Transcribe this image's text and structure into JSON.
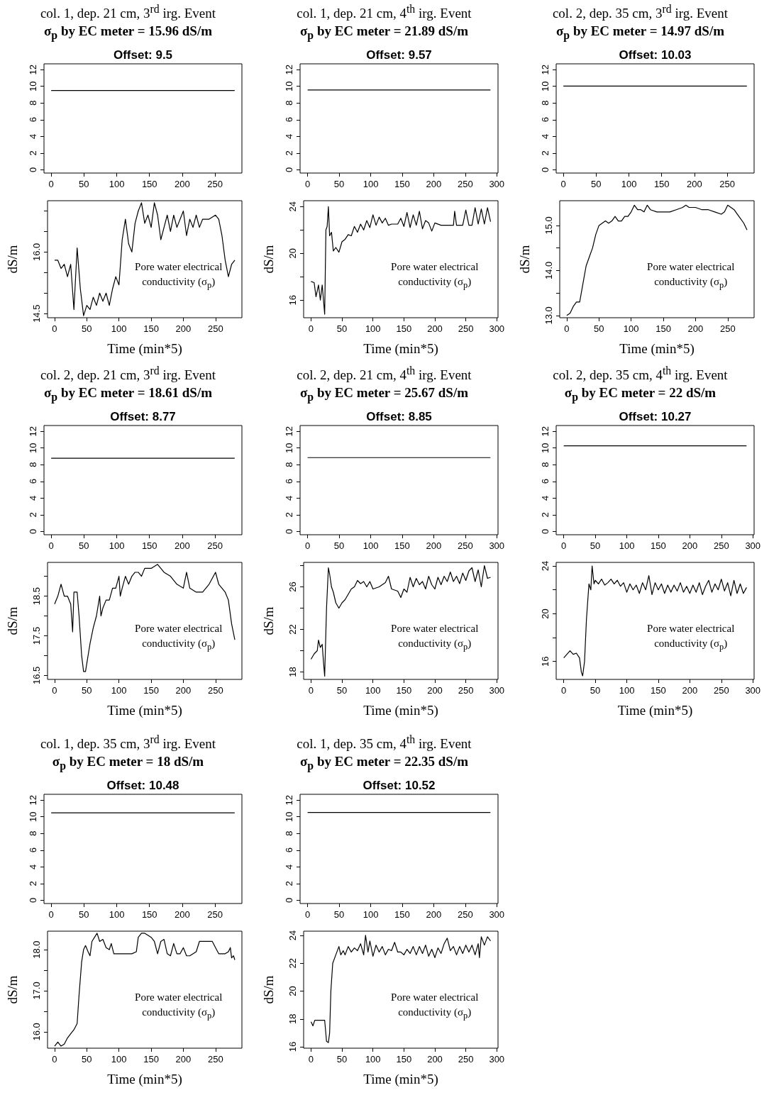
{
  "chart_data": [
    {
      "type": "line",
      "title": "col. 1, dep. 21 cm, 3$^{rd}$ irg. Event",
      "subtitle": "σ$_{p}$ by EC meter = 15.96 dS/m",
      "annotations": [
        "Offset: 9.5"
      ],
      "marker": "none",
      "line_style": "solid",
      "xlim": [
        -11,
        291
      ],
      "xticks": [
        0,
        50,
        100,
        150,
        200,
        250
      ],
      "ylim": [
        -0.4,
        12.7
      ],
      "yticks": [
        0,
        2,
        4,
        6,
        8,
        10,
        12
      ],
      "series": [
        {
          "color": "#000000",
          "x": [
            0,
            280
          ],
          "values": [
            9.5,
            9.5
          ]
        }
      ]
    },
    {
      "type": "line",
      "xlabel": "Time (min*5)",
      "ylabel": "dS/m",
      "annotations": [
        "Pore water electrical conductivity (σ$_{p}$)"
      ],
      "marker": "none",
      "line_style": "solid",
      "xlim": [
        -11,
        291
      ],
      "xticks": [
        0,
        50,
        100,
        150,
        200,
        250
      ],
      "ylim": [
        14.4,
        17.25
      ],
      "yticks": [
        14.5,
        {
          "value": 15,
          "label": null
        },
        {
          "value": 15.5,
          "label": null
        },
        {
          "value": 16,
          "label": "16.0"
        },
        {
          "value": 16.5,
          "label": null
        },
        {
          "value": 17,
          "label": null
        }
      ],
      "series": [
        {
          "color": "#000000",
          "x": [
            0,
            5,
            10,
            15,
            20,
            25,
            30,
            35,
            40,
            45,
            50,
            55,
            60,
            65,
            70,
            75,
            80,
            85,
            90,
            95,
            100,
            105,
            110,
            115,
            120,
            125,
            130,
            135,
            140,
            145,
            150,
            155,
            160,
            165,
            170,
            175,
            180,
            185,
            190,
            195,
            200,
            205,
            210,
            215,
            220,
            225,
            230,
            240,
            250,
            255,
            260,
            265,
            270,
            275,
            280
          ],
          "values": [
            15.8,
            15.8,
            15.6,
            15.7,
            15.4,
            15.7,
            14.6,
            16.1,
            15.1,
            14.45,
            14.7,
            14.6,
            14.9,
            14.7,
            15.0,
            14.8,
            15.0,
            14.7,
            15.1,
            15.4,
            15.2,
            16.3,
            16.8,
            16.2,
            16.0,
            16.7,
            17.0,
            17.2,
            16.7,
            16.9,
            16.6,
            17.2,
            16.9,
            16.3,
            16.6,
            16.9,
            16.5,
            16.9,
            16.6,
            16.8,
            17.0,
            16.4,
            16.8,
            16.6,
            16.9,
            16.6,
            16.8,
            16.8,
            16.9,
            16.8,
            16.4,
            15.8,
            15.4,
            15.7,
            15.8
          ]
        }
      ]
    },
    {
      "type": "line",
      "title": "col. 1, dep. 21 cm, 4$^{th}$ irg. Event",
      "subtitle": "σ$_{p}$ by EC meter = 21.89 dS/m",
      "annotations": [
        "Offset: 9.57"
      ],
      "marker": "none",
      "line_style": "solid",
      "xlim": [
        -12,
        302
      ],
      "xticks": [
        0,
        50,
        100,
        150,
        200,
        250,
        300
      ],
      "ylim": [
        -0.4,
        12.7
      ],
      "yticks": [
        0,
        2,
        4,
        6,
        8,
        10,
        12
      ],
      "series": [
        {
          "color": "#000000",
          "x": [
            0,
            290
          ],
          "values": [
            9.57,
            9.57
          ]
        }
      ]
    },
    {
      "type": "line",
      "xlabel": "Time (min*5)",
      "ylabel": "dS/m",
      "annotations": [
        "Pore water electrical conductivity (σ$_{p}$)"
      ],
      "marker": "none",
      "line_style": "solid",
      "xlim": [
        -12,
        302
      ],
      "xticks": [
        0,
        50,
        100,
        150,
        200,
        250,
        300
      ],
      "ylim": [
        14.5,
        24.5
      ],
      "yticks": [
        16,
        {
          "value": 18,
          "label": null
        },
        20,
        {
          "value": 22,
          "label": null
        },
        24
      ],
      "series": [
        {
          "color": "#000000",
          "x": [
            0,
            5,
            8,
            12,
            15,
            18,
            22,
            24,
            26,
            28,
            30,
            33,
            36,
            40,
            45,
            50,
            55,
            60,
            65,
            70,
            75,
            80,
            85,
            90,
            95,
            100,
            105,
            110,
            115,
            120,
            125,
            130,
            140,
            145,
            150,
            155,
            160,
            165,
            170,
            175,
            180,
            185,
            190,
            195,
            200,
            210,
            230,
            232,
            235,
            245,
            250,
            255,
            260,
            265,
            270,
            275,
            280,
            285,
            290
          ],
          "values": [
            17.6,
            17.5,
            16.3,
            17.3,
            16.0,
            17.3,
            14.8,
            22.0,
            22.3,
            24.0,
            21.5,
            21.8,
            20.2,
            20.5,
            20.1,
            21.0,
            21.2,
            21.6,
            21.5,
            22.3,
            21.8,
            22.5,
            22.0,
            22.8,
            22.2,
            23.3,
            22.4,
            23.1,
            22.6,
            23.0,
            22.4,
            22.5,
            22.5,
            23.0,
            22.3,
            23.5,
            22.2,
            23.3,
            22.4,
            23.6,
            22.1,
            22.8,
            22.6,
            21.9,
            22.6,
            22.4,
            22.4,
            23.6,
            22.4,
            22.4,
            23.7,
            22.4,
            22.4,
            23.9,
            22.5,
            23.8,
            22.5,
            23.9,
            22.7
          ]
        }
      ]
    },
    {
      "type": "line",
      "title": "col. 2, dep. 35 cm, 3$^{rd}$ irg. Event",
      "subtitle": "σ$_{p}$ by EC meter = 14.97 dS/m",
      "annotations": [
        "Offset: 10.03"
      ],
      "marker": "none",
      "line_style": "solid",
      "xlim": [
        -11,
        291
      ],
      "xticks": [
        0,
        50,
        100,
        150,
        200,
        250
      ],
      "ylim": [
        -0.4,
        12.7
      ],
      "yticks": [
        0,
        2,
        4,
        6,
        8,
        10,
        12
      ],
      "series": [
        {
          "color": "#000000",
          "x": [
            0,
            280
          ],
          "values": [
            10.03,
            10.03
          ]
        }
      ]
    },
    {
      "type": "line",
      "xlabel": "Time (min*5)",
      "ylabel": "dS/m",
      "annotations": [
        "Pore water electrical conductivity (σ$_{p}$)"
      ],
      "marker": "none",
      "line_style": "solid",
      "xlim": [
        -11,
        291
      ],
      "xticks": [
        0,
        50,
        100,
        150,
        200,
        250
      ],
      "ylim": [
        12.95,
        15.55
      ],
      "yticks": [
        {
          "value": 13,
          "label": "13.0"
        },
        {
          "value": 13.5,
          "label": null
        },
        {
          "value": 14,
          "label": "14.0"
        },
        {
          "value": 14.5,
          "label": null
        },
        {
          "value": 15,
          "label": "15.0"
        }
      ],
      "series": [
        {
          "color": "#000000",
          "x": [
            0,
            5,
            10,
            15,
            20,
            25,
            30,
            35,
            40,
            45,
            50,
            55,
            60,
            65,
            70,
            75,
            80,
            85,
            90,
            95,
            100,
            105,
            110,
            115,
            120,
            125,
            130,
            140,
            150,
            160,
            170,
            180,
            185,
            190,
            200,
            210,
            220,
            230,
            240,
            245,
            250,
            255,
            260,
            265,
            270,
            275,
            280
          ],
          "values": [
            13.0,
            13.05,
            13.2,
            13.3,
            13.3,
            13.7,
            14.1,
            14.3,
            14.5,
            14.8,
            15.0,
            15.05,
            15.1,
            15.05,
            15.1,
            15.2,
            15.1,
            15.1,
            15.2,
            15.2,
            15.3,
            15.45,
            15.35,
            15.35,
            15.3,
            15.45,
            15.35,
            15.3,
            15.3,
            15.3,
            15.35,
            15.4,
            15.45,
            15.4,
            15.4,
            15.35,
            15.35,
            15.3,
            15.25,
            15.3,
            15.45,
            15.4,
            15.35,
            15.25,
            15.15,
            15.05,
            14.9
          ]
        }
      ]
    },
    {
      "type": "line",
      "title": "col. 2, dep. 21 cm, 3$^{rd}$ irg. Event",
      "subtitle": "σ$_{p}$ by EC meter = 18.61 dS/m",
      "annotations": [
        "Offset: 8.77"
      ],
      "marker": "none",
      "line_style": "solid",
      "xlim": [
        -11,
        291
      ],
      "xticks": [
        0,
        50,
        100,
        150,
        200,
        250
      ],
      "ylim": [
        -0.4,
        12.7
      ],
      "yticks": [
        0,
        2,
        4,
        6,
        8,
        10,
        12
      ],
      "series": [
        {
          "color": "#000000",
          "x": [
            0,
            280
          ],
          "values": [
            8.77,
            8.77
          ]
        }
      ]
    },
    {
      "type": "line",
      "xlabel": "Time (min*5)",
      "ylabel": "dS/m",
      "annotations": [
        "Pore water electrical conductivity (σ$_{p}$)"
      ],
      "marker": "none",
      "line_style": "solid",
      "xlim": [
        -11,
        291
      ],
      "xticks": [
        0,
        50,
        100,
        150,
        200,
        250
      ],
      "ylim": [
        16.4,
        19.35
      ],
      "yticks": [
        16.5,
        {
          "value": 17,
          "label": null
        },
        17.5,
        {
          "value": 18,
          "label": null
        },
        18.5,
        {
          "value": 19,
          "label": null
        }
      ],
      "series": [
        {
          "color": "#000000",
          "x": [
            0,
            5,
            10,
            15,
            20,
            25,
            28,
            30,
            35,
            38,
            42,
            45,
            48,
            52,
            55,
            60,
            65,
            70,
            72,
            75,
            80,
            85,
            90,
            95,
            100,
            102,
            105,
            110,
            115,
            120,
            125,
            130,
            135,
            140,
            150,
            160,
            165,
            170,
            180,
            190,
            200,
            205,
            210,
            220,
            230,
            240,
            250,
            255,
            260,
            265,
            270,
            275,
            280
          ],
          "values": [
            18.3,
            18.5,
            18.8,
            18.5,
            18.5,
            18.3,
            17.6,
            18.6,
            18.6,
            18.0,
            17.0,
            16.6,
            16.6,
            17.0,
            17.3,
            17.7,
            18.0,
            18.5,
            18.0,
            18.2,
            18.4,
            18.4,
            18.7,
            18.7,
            19.0,
            18.5,
            18.7,
            19.0,
            18.8,
            19.0,
            19.1,
            19.1,
            19.0,
            19.2,
            19.2,
            19.3,
            19.2,
            19.1,
            19.0,
            18.8,
            18.7,
            19.1,
            18.7,
            18.6,
            18.6,
            18.8,
            19.1,
            18.8,
            18.7,
            18.6,
            18.4,
            17.8,
            17.4
          ]
        }
      ]
    },
    {
      "type": "line",
      "title": "col. 2, dep. 21 cm, 4$^{th}$ irg. Event",
      "subtitle": "σ$_{p}$ by EC meter = 25.67 dS/m",
      "annotations": [
        "Offset: 8.85"
      ],
      "marker": "none",
      "line_style": "solid",
      "xlim": [
        -12,
        302
      ],
      "xticks": [
        0,
        50,
        100,
        150,
        200,
        250,
        300
      ],
      "ylim": [
        -0.4,
        12.7
      ],
      "yticks": [
        0,
        2,
        4,
        6,
        8,
        10,
        12
      ],
      "series": [
        {
          "color": "#000000",
          "x": [
            0,
            290
          ],
          "values": [
            8.85,
            8.85
          ]
        }
      ]
    },
    {
      "type": "line",
      "xlabel": "Time (min*5)",
      "ylabel": "dS/m",
      "annotations": [
        "Pore water electrical conductivity (σ$_{p}$)"
      ],
      "marker": "none",
      "line_style": "solid",
      "xlim": [
        -12,
        302
      ],
      "xticks": [
        0,
        50,
        100,
        150,
        200,
        250,
        300
      ],
      "ylim": [
        17.3,
        28.3
      ],
      "yticks": [
        18,
        {
          "value": 20,
          "label": null
        },
        22,
        {
          "value": 24,
          "label": null
        },
        26,
        {
          "value": 28,
          "label": null
        }
      ],
      "series": [
        {
          "color": "#000000",
          "x": [
            0,
            5,
            10,
            12,
            15,
            18,
            20,
            22,
            25,
            28,
            30,
            33,
            36,
            40,
            45,
            50,
            55,
            60,
            65,
            70,
            75,
            80,
            85,
            90,
            95,
            100,
            110,
            120,
            125,
            130,
            140,
            145,
            150,
            155,
            160,
            165,
            170,
            175,
            180,
            185,
            190,
            195,
            200,
            205,
            210,
            215,
            220,
            225,
            230,
            235,
            240,
            245,
            250,
            255,
            260,
            265,
            270,
            275,
            280,
            285,
            290
          ],
          "values": [
            19.2,
            19.7,
            20.0,
            21.0,
            20.3,
            20.6,
            19.0,
            17.6,
            24.0,
            27.8,
            27.2,
            26.0,
            25.5,
            24.5,
            24.0,
            24.5,
            24.8,
            25.3,
            25.8,
            26.0,
            26.6,
            26.3,
            26.5,
            26.0,
            26.5,
            25.8,
            26.0,
            26.4,
            27.0,
            25.8,
            25.6,
            25.0,
            25.8,
            25.5,
            26.9,
            26.0,
            26.8,
            26.2,
            26.5,
            25.8,
            27.0,
            26.2,
            25.8,
            26.9,
            26.2,
            27.0,
            26.5,
            27.4,
            26.5,
            27.0,
            26.3,
            27.3,
            26.6,
            27.5,
            27.8,
            26.5,
            27.6,
            26.0,
            28.0,
            26.8,
            26.9
          ]
        }
      ]
    },
    {
      "type": "line",
      "title": "col. 2, dep. 35 cm, 4$^{th}$ irg. Event",
      "subtitle": "σ$_{p}$ by EC meter = 22 dS/m",
      "annotations": [
        "Offset: 10.27"
      ],
      "marker": "none",
      "line_style": "solid",
      "xlim": [
        -12,
        302
      ],
      "xticks": [
        0,
        50,
        100,
        150,
        200,
        250,
        300
      ],
      "ylim": [
        -0.4,
        12.7
      ],
      "yticks": [
        0,
        2,
        4,
        6,
        8,
        10,
        12
      ],
      "series": [
        {
          "color": "#000000",
          "x": [
            0,
            290
          ],
          "values": [
            10.27,
            10.27
          ]
        }
      ]
    },
    {
      "type": "line",
      "xlabel": "Time (min*5)",
      "annotations": [
        "Pore water electrical conductivity (σ$_{p}$)"
      ],
      "marker": "none",
      "line_style": "solid",
      "xlim": [
        -12,
        302
      ],
      "xticks": [
        0,
        50,
        100,
        150,
        200,
        250,
        300
      ],
      "ylim": [
        14.5,
        24.3
      ],
      "yticks": [
        16,
        {
          "value": 18,
          "label": null
        },
        20,
        {
          "value": 22,
          "label": null
        },
        24
      ],
      "series": [
        {
          "color": "#000000",
          "x": [
            0,
            5,
            10,
            15,
            20,
            25,
            28,
            30,
            33,
            36,
            40,
            43,
            45,
            48,
            50,
            55,
            60,
            65,
            70,
            75,
            80,
            85,
            90,
            95,
            100,
            105,
            110,
            115,
            120,
            125,
            130,
            135,
            140,
            145,
            150,
            155,
            160,
            165,
            170,
            175,
            180,
            185,
            190,
            195,
            200,
            205,
            210,
            215,
            220,
            225,
            230,
            235,
            240,
            245,
            250,
            255,
            260,
            265,
            270,
            275,
            280,
            285,
            290
          ],
          "values": [
            16.3,
            16.6,
            16.9,
            16.6,
            16.7,
            16.3,
            15.1,
            14.8,
            16.0,
            19.5,
            22.5,
            22.0,
            24.0,
            22.5,
            22.8,
            22.5,
            22.9,
            22.4,
            22.6,
            22.9,
            22.5,
            22.8,
            22.3,
            22.6,
            21.8,
            22.5,
            22.0,
            22.4,
            21.7,
            22.6,
            22.0,
            23.2,
            21.6,
            22.6,
            22.0,
            22.5,
            21.7,
            22.4,
            21.8,
            22.4,
            21.9,
            22.6,
            21.8,
            22.3,
            21.7,
            22.4,
            21.8,
            22.6,
            21.6,
            22.3,
            22.8,
            21.8,
            22.5,
            22.0,
            22.9,
            21.9,
            22.6,
            21.5,
            22.8,
            21.7,
            22.5,
            21.7,
            22.2
          ]
        }
      ]
    },
    {
      "type": "line",
      "title": "col. 1, dep. 35 cm, 3$^{rd}$ irg. Event",
      "subtitle": "σ$_{p}$ by EC meter = 18 dS/m",
      "annotations": [
        "Offset: 10.48"
      ],
      "marker": "none",
      "line_style": "solid",
      "xlim": [
        -11,
        291
      ],
      "xticks": [
        0,
        50,
        100,
        150,
        200,
        250
      ],
      "ylim": [
        -0.4,
        12.7
      ],
      "yticks": [
        0,
        2,
        4,
        6,
        8,
        10,
        12
      ],
      "series": [
        {
          "color": "#000000",
          "x": [
            0,
            280
          ],
          "values": [
            10.48,
            10.48
          ]
        }
      ]
    },
    {
      "type": "line",
      "xlabel": "Time (min*5)",
      "ylabel": "dS/m",
      "annotations": [
        "Pore water electrical conductivity (σ$_{p}$)"
      ],
      "marker": "none",
      "line_style": "solid",
      "xlim": [
        -11,
        291
      ],
      "xticks": [
        0,
        50,
        100,
        150,
        200,
        250
      ],
      "ylim": [
        15.6,
        18.45
      ],
      "yticks": [
        {
          "value": 16,
          "label": "16.0"
        },
        {
          "value": 16.5,
          "label": null
        },
        {
          "value": 17,
          "label": "17.0"
        },
        {
          "value": 17.5,
          "label": null
        },
        {
          "value": 18,
          "label": "18.0"
        }
      ],
      "series": [
        {
          "color": "#000000",
          "x": [
            0,
            5,
            10,
            15,
            20,
            25,
            30,
            35,
            38,
            42,
            45,
            48,
            52,
            55,
            58,
            62,
            66,
            70,
            75,
            80,
            85,
            88,
            92,
            100,
            110,
            120,
            127,
            130,
            135,
            140,
            145,
            150,
            155,
            160,
            165,
            170,
            175,
            180,
            185,
            190,
            195,
            200,
            205,
            210,
            220,
            225,
            235,
            245,
            250,
            255,
            265,
            270,
            273,
            275,
            278,
            280
          ],
          "values": [
            15.65,
            15.75,
            15.65,
            15.7,
            15.85,
            15.95,
            16.05,
            16.2,
            16.9,
            17.7,
            18.0,
            18.1,
            17.95,
            17.85,
            18.2,
            18.3,
            18.4,
            18.2,
            18.25,
            18.05,
            18.0,
            18.15,
            17.9,
            17.9,
            17.9,
            17.9,
            17.95,
            18.3,
            18.4,
            18.4,
            18.35,
            18.3,
            18.2,
            17.9,
            18.2,
            18.25,
            17.9,
            17.85,
            18.15,
            17.9,
            17.9,
            18.05,
            17.85,
            17.85,
            17.95,
            18.2,
            18.2,
            18.2,
            18.05,
            17.9,
            17.9,
            17.95,
            18.05,
            17.8,
            17.85,
            17.75
          ]
        }
      ]
    },
    {
      "type": "line",
      "title": "col. 1, dep. 35 cm, 4$^{th}$ irg. Event",
      "subtitle": "σ$_{p}$ by EC meter = 22.35 dS/m",
      "annotations": [
        "Offset: 10.52"
      ],
      "marker": "none",
      "line_style": "solid",
      "xlim": [
        -12,
        302
      ],
      "xticks": [
        0,
        50,
        100,
        150,
        200,
        250,
        300
      ],
      "ylim": [
        -0.4,
        12.7
      ],
      "yticks": [
        0,
        2,
        4,
        6,
        8,
        10,
        12
      ],
      "series": [
        {
          "color": "#000000",
          "x": [
            0,
            290
          ],
          "values": [
            10.52,
            10.52
          ]
        }
      ]
    },
    {
      "type": "line",
      "xlabel": "Time (min*5)",
      "ylabel": "dS/m",
      "annotations": [
        "Pore water electrical conductivity (σ$_{p}$)"
      ],
      "marker": "none",
      "line_style": "solid",
      "xlim": [
        -12,
        302
      ],
      "xticks": [
        0,
        50,
        100,
        150,
        200,
        250,
        300
      ],
      "ylim": [
        15.9,
        24.3
      ],
      "yticks": [
        16,
        18,
        20,
        22,
        24
      ],
      "series": [
        {
          "color": "#000000",
          "x": [
            0,
            3,
            6,
            15,
            22,
            25,
            28,
            30,
            32,
            35,
            40,
            45,
            48,
            52,
            55,
            60,
            65,
            70,
            75,
            80,
            85,
            88,
            92,
            95,
            100,
            105,
            110,
            115,
            120,
            125,
            130,
            135,
            140,
            145,
            150,
            155,
            160,
            165,
            170,
            175,
            180,
            185,
            190,
            195,
            200,
            205,
            210,
            215,
            220,
            225,
            230,
            235,
            240,
            245,
            250,
            255,
            260,
            265,
            270,
            272,
            275,
            280,
            285,
            290
          ],
          "values": [
            17.8,
            17.5,
            17.9,
            17.9,
            17.9,
            16.4,
            16.3,
            17.0,
            20.0,
            22.0,
            22.6,
            23.2,
            22.6,
            22.9,
            22.6,
            23.2,
            22.8,
            23.1,
            22.9,
            23.4,
            22.6,
            24.0,
            22.8,
            23.6,
            22.5,
            23.3,
            22.8,
            23.2,
            22.6,
            23.0,
            22.9,
            23.5,
            22.8,
            22.8,
            22.6,
            23.0,
            22.7,
            23.2,
            22.6,
            23.2,
            22.7,
            23.3,
            22.5,
            23.0,
            22.4,
            23.1,
            22.7,
            23.4,
            23.8,
            22.9,
            23.2,
            22.6,
            23.2,
            22.7,
            23.3,
            22.8,
            23.3,
            22.6,
            23.4,
            22.4,
            23.9,
            23.3,
            23.9,
            23.6
          ]
        }
      ]
    }
  ]
}
